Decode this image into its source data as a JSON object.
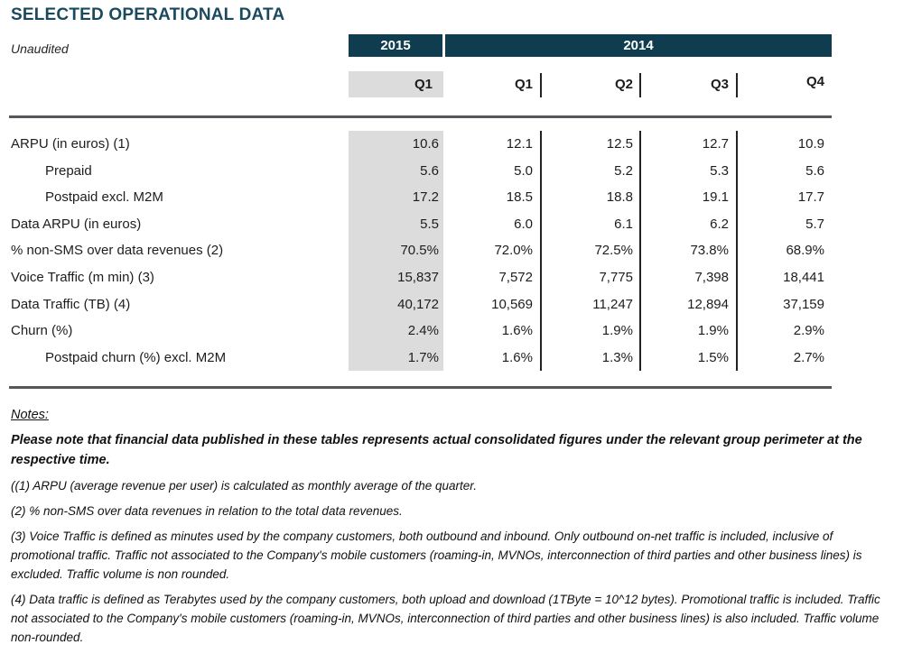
{
  "header": {
    "title": "SELECTED OPERATIONAL DATA",
    "subtitle": "Unaudited"
  },
  "table": {
    "year_2015": "2015",
    "year_2014": "2014",
    "q2015": [
      "Q1"
    ],
    "q2014": [
      "Q1",
      "Q2",
      "Q3",
      "Q4"
    ],
    "rows": [
      {
        "label": "ARPU (in euros) (1)",
        "indent": false,
        "values": [
          "10.6",
          "12.1",
          "12.5",
          "12.7",
          "10.9"
        ]
      },
      {
        "label": "Prepaid",
        "indent": true,
        "values": [
          "5.6",
          "5.0",
          "5.2",
          "5.3",
          "5.6"
        ]
      },
      {
        "label": "Postpaid excl. M2M",
        "indent": true,
        "values": [
          "17.2",
          "18.5",
          "18.8",
          "19.1",
          "17.7"
        ]
      },
      {
        "label": "Data ARPU (in euros)",
        "indent": false,
        "values": [
          "5.5",
          "6.0",
          "6.1",
          "6.2",
          "5.7"
        ]
      },
      {
        "label": "% non-SMS over data revenues (2)",
        "indent": false,
        "values": [
          "70.5%",
          "72.0%",
          "72.5%",
          "73.8%",
          "68.9%"
        ]
      },
      {
        "label": "Voice Traffic (m min) (3)",
        "indent": false,
        "values": [
          "15,837",
          "7,572",
          "7,775",
          "7,398",
          "18,441"
        ]
      },
      {
        "label": "Data Traffic (TB) (4)",
        "indent": false,
        "values": [
          "40,172",
          "10,569",
          "11,247",
          "12,894",
          "37,159"
        ]
      },
      {
        "label": "Churn (%)",
        "indent": false,
        "values": [
          "2.4%",
          "1.6%",
          "1.9%",
          "1.9%",
          "2.9%"
        ]
      },
      {
        "label": "Postpaid churn (%) excl. M2M",
        "indent": true,
        "values": [
          "1.7%",
          "1.6%",
          "1.3%",
          "1.5%",
          "2.7%"
        ]
      }
    ]
  },
  "notes": {
    "heading": "Notes:",
    "disclaimer": "Please note that financial data published in these tables represents actual consolidated figures under the relevant group perimeter at the respective time.",
    "items": [
      "((1) ARPU (average revenue per user) is calculated as monthly average of the quarter.",
      "(2) % non-SMS over data revenues in relation to the total data revenues.",
      "(3) Voice Traffic is defined as minutes used by the company customers, both outbound and inbound. Only outbound on-net traffic is included, inclusive of promotional traffic. Traffic not associated to the Company's mobile customers (roaming-in, MVNOs, interconnection of third parties and other business lines) is excluded. Traffic volume is non rounded.",
      "(4) Data traffic is defined as Terabytes used by the company customers, both upload and download (1TByte = 10^12 bytes). Promotional traffic is included. Traffic not associated to the Company's mobile customers (roaming-in, MVNOs, interconnection of third parties and other business lines) is also included. Traffic volume non-rounded."
    ]
  },
  "colors": {
    "accent_teal": "#0f3d4f",
    "title_teal": "#1b4a5e",
    "highlight_gray": "#dcdcdc",
    "rule_gray": "#55575a"
  }
}
